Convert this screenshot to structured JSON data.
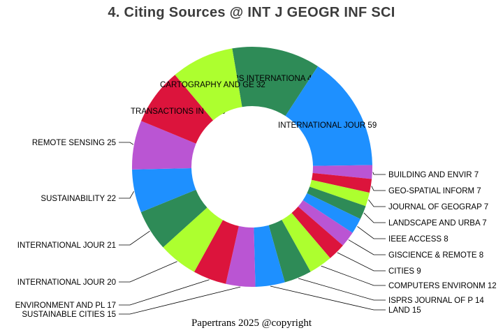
{
  "title": "4. Citing Sources @ INT J GEOGR INF SCI",
  "footer": "Papertrans 2025 @copyright",
  "chart_data": {
    "type": "pie",
    "subtype": "donut",
    "title": "4. Citing Sources @ INT J GEOGR INF SCI",
    "direction": "clockwise",
    "start_angle_deg": -9.6,
    "total": 379,
    "items": [
      {
        "label": "ISPRS INTERNATIONA",
        "value": 45
      },
      {
        "label": "INTERNATIONAL JOUR",
        "value": 59
      },
      {
        "label": "BUILDING AND ENVIR",
        "value": 7
      },
      {
        "label": "GEO-SPATIAL INFORM",
        "value": 7
      },
      {
        "label": "JOURNAL OF GEOGRAP",
        "value": 7
      },
      {
        "label": "LANDSCAPE AND URBA",
        "value": 7
      },
      {
        "label": "IEEE ACCESS",
        "value": 8
      },
      {
        "label": "GISCIENCE & REMOTE",
        "value": 8
      },
      {
        "label": "CITIES",
        "value": 9
      },
      {
        "label": "COMPUTERS ENVIRONM",
        "value": 12
      },
      {
        "label": "ISPRS JOURNAL OF P",
        "value": 14
      },
      {
        "label": "LAND",
        "value": 15
      },
      {
        "label": "SUSTAINABLE CITIES",
        "value": 15
      },
      {
        "label": "ENVIRONMENT AND PL",
        "value": 17
      },
      {
        "label": "INTERNATIONAL JOUR",
        "value": 20
      },
      {
        "label": "INTERNATIONAL JOUR",
        "value": 21
      },
      {
        "label": "SUSTAINABILITY",
        "value": 22
      },
      {
        "label": "REMOTE SENSING",
        "value": 25
      },
      {
        "label": "TRANSACTIONS IN GI",
        "value": 29
      },
      {
        "label": "CARTOGRAPHY AND GE",
        "value": 32
      }
    ],
    "palette": [
      "#2e8b57",
      "#1e90ff",
      "#ba55d3",
      "#dc143c",
      "#adff2f"
    ],
    "label_color": "#000000",
    "leader_line_color": "#000000",
    "background": "#ffffff",
    "legend": "none"
  }
}
